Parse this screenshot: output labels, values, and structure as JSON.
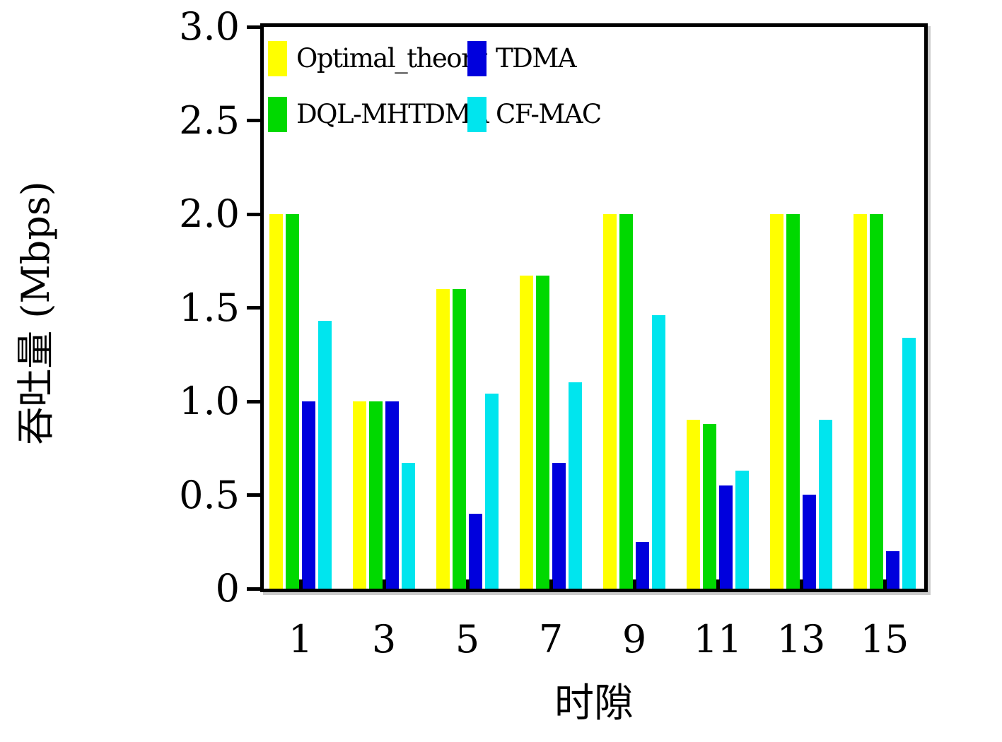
{
  "figure": {
    "background": "#ffffff",
    "frame_color": "#000000",
    "text_color": "#000000"
  },
  "chart_data": {
    "type": "bar",
    "title": "",
    "xlabel": "时隙",
    "ylabel": "吞吐量 (Mbps)",
    "categories": [
      "1",
      "3",
      "5",
      "7",
      "9",
      "11",
      "13",
      "15"
    ],
    "series": [
      {
        "name": "Optimal_theory",
        "color": "#ffff00",
        "values": [
          2.0,
          1.0,
          1.6,
          1.67,
          2.0,
          0.9,
          2.0,
          2.0
        ]
      },
      {
        "name": "DQL-MHTDMA",
        "color": "#00d900",
        "values": [
          2.0,
          1.0,
          1.6,
          1.67,
          2.0,
          0.88,
          2.0,
          2.0
        ]
      },
      {
        "name": "TDMA",
        "color": "#0000dd",
        "values": [
          1.0,
          1.0,
          0.4,
          0.67,
          0.25,
          0.55,
          0.5,
          0.2
        ]
      },
      {
        "name": "CF-MAC",
        "color": "#00e5ee",
        "values": [
          1.43,
          0.67,
          1.04,
          1.1,
          1.46,
          0.63,
          0.9,
          1.34
        ]
      }
    ],
    "ylim": [
      0,
      3.0
    ],
    "ytick_values": [
      3.0,
      2.5,
      2.0,
      1.5,
      1.0,
      0.5,
      0
    ],
    "ytick_labels": [
      "3.0",
      "2.5",
      "2.0",
      "1.5",
      "1.0",
      "0.5",
      "0"
    ],
    "grid": false,
    "legend_position": "inside-top-left",
    "legend_rows": [
      [
        "Optimal_theory",
        "TDMA"
      ],
      [
        "DQL-MHTDMA",
        "CF-MAC"
      ]
    ]
  }
}
